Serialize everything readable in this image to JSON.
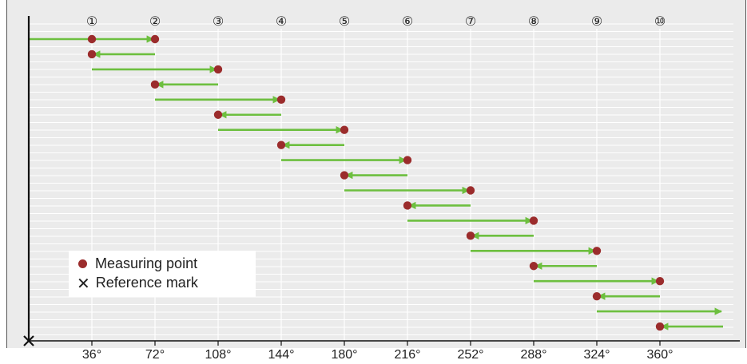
{
  "colors": {
    "background": "#ebebeb",
    "gridline": "#ffffff",
    "arrow": "#6dbf3f",
    "measuring_point": "#9b2c2c",
    "axis": "#111111"
  },
  "position_markers": [
    "①",
    "②",
    "③",
    "④",
    "⑤",
    "⑥",
    "⑦",
    "⑧",
    "⑨",
    "⑩"
  ],
  "x_tick_labels": [
    "36°",
    "72°",
    "108°",
    "144°",
    "180°",
    "216°",
    "252°",
    "288°",
    "324°",
    "360°"
  ],
  "legend": {
    "measuring_point": "Measuring point",
    "reference_mark": "Reference mark",
    "reference_mark_symbol": "✕"
  },
  "chart_data": {
    "type": "diagram",
    "x_unit": "degrees",
    "x_range": [
      0,
      396
    ],
    "reference_mark_angle": 0,
    "moves": [
      {
        "from": 0,
        "to": 72,
        "point_at": [
          36,
          72
        ]
      },
      {
        "from": 72,
        "to": 36,
        "point_at": [
          36
        ]
      },
      {
        "from": 36,
        "to": 108,
        "point_at": [
          108
        ]
      },
      {
        "from": 108,
        "to": 72,
        "point_at": [
          72
        ]
      },
      {
        "from": 72,
        "to": 144,
        "point_at": [
          144
        ]
      },
      {
        "from": 144,
        "to": 108,
        "point_at": [
          108
        ]
      },
      {
        "from": 108,
        "to": 180,
        "point_at": [
          180
        ]
      },
      {
        "from": 180,
        "to": 144,
        "point_at": [
          144
        ]
      },
      {
        "from": 144,
        "to": 216,
        "point_at": [
          216
        ]
      },
      {
        "from": 216,
        "to": 180,
        "point_at": [
          180
        ]
      },
      {
        "from": 180,
        "to": 252,
        "point_at": [
          252
        ]
      },
      {
        "from": 252,
        "to": 216,
        "point_at": [
          216
        ]
      },
      {
        "from": 216,
        "to": 288,
        "point_at": [
          288
        ]
      },
      {
        "from": 288,
        "to": 252,
        "point_at": [
          252
        ]
      },
      {
        "from": 252,
        "to": 324,
        "point_at": [
          324
        ]
      },
      {
        "from": 324,
        "to": 288,
        "point_at": [
          288
        ]
      },
      {
        "from": 288,
        "to": 360,
        "point_at": [
          360
        ]
      },
      {
        "from": 360,
        "to": 324,
        "point_at": [
          324
        ]
      },
      {
        "from": 324,
        "to": 396,
        "point_at": []
      },
      {
        "from": 396,
        "to": 360,
        "point_at": [
          360
        ]
      }
    ]
  }
}
